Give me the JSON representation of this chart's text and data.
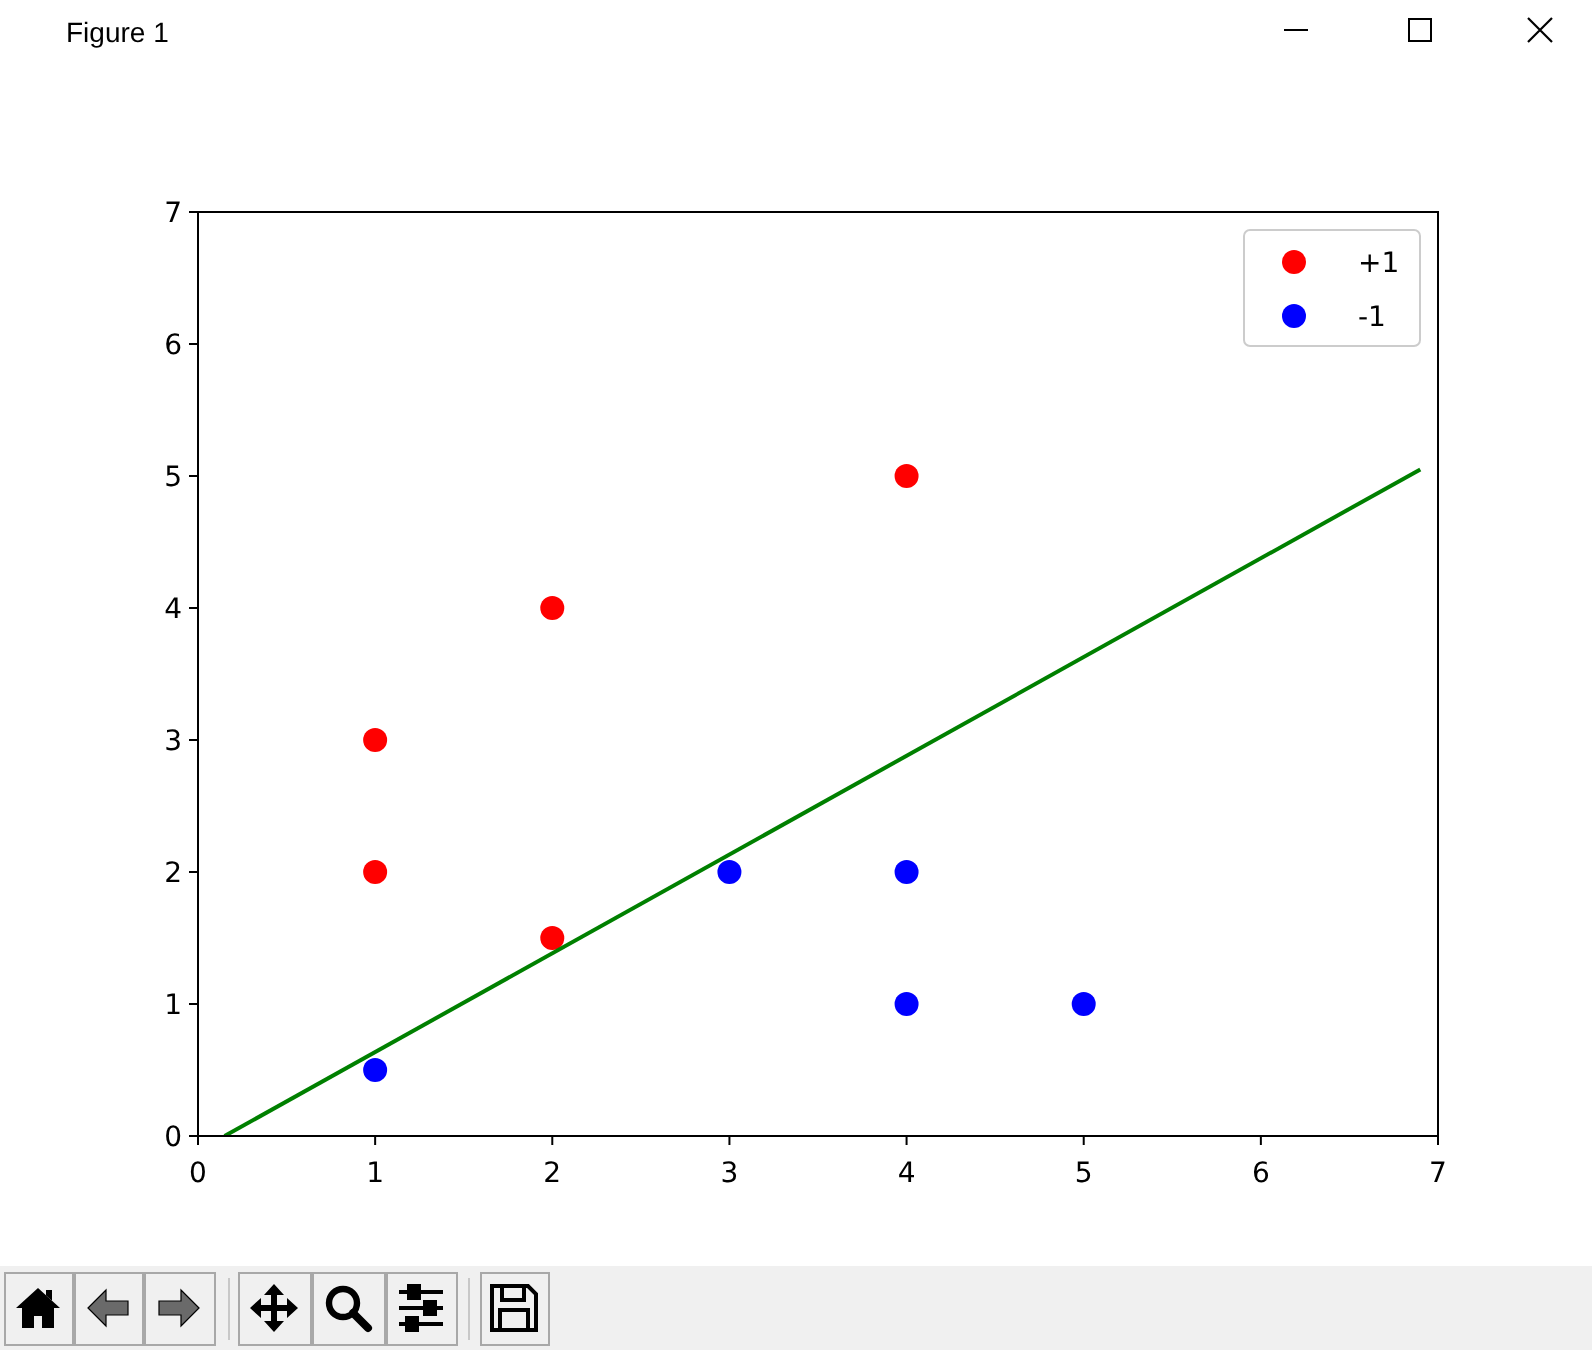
{
  "chart_data": {
    "type": "scatter",
    "annotations": [
      "Figure 1"
    ],
    "series": [
      {
        "name": "+1",
        "color": "#ff0000",
        "x": [
          1,
          1,
          2,
          2,
          4
        ],
        "values": [
          3,
          2,
          4,
          1.5,
          5
        ]
      },
      {
        "name": "-1",
        "color": "#0000ff",
        "x": [
          1,
          3,
          4,
          4,
          5
        ],
        "values": [
          0.5,
          2,
          2,
          1,
          1
        ]
      },
      {
        "type": "line",
        "color": "#008000",
        "marker": "none",
        "x": [
          0.15,
          6.9
        ],
        "values": [
          0,
          5.05
        ]
      }
    ],
    "xlim": [
      0,
      7
    ],
    "ylim": [
      0,
      7
    ],
    "xticks": [
      0,
      1,
      2,
      3,
      4,
      5,
      6,
      7
    ],
    "yticks": [
      0,
      1,
      2,
      3,
      4,
      5,
      6,
      7
    ],
    "marker": "circle",
    "line_style": "solid",
    "legend": "top right"
  }
}
